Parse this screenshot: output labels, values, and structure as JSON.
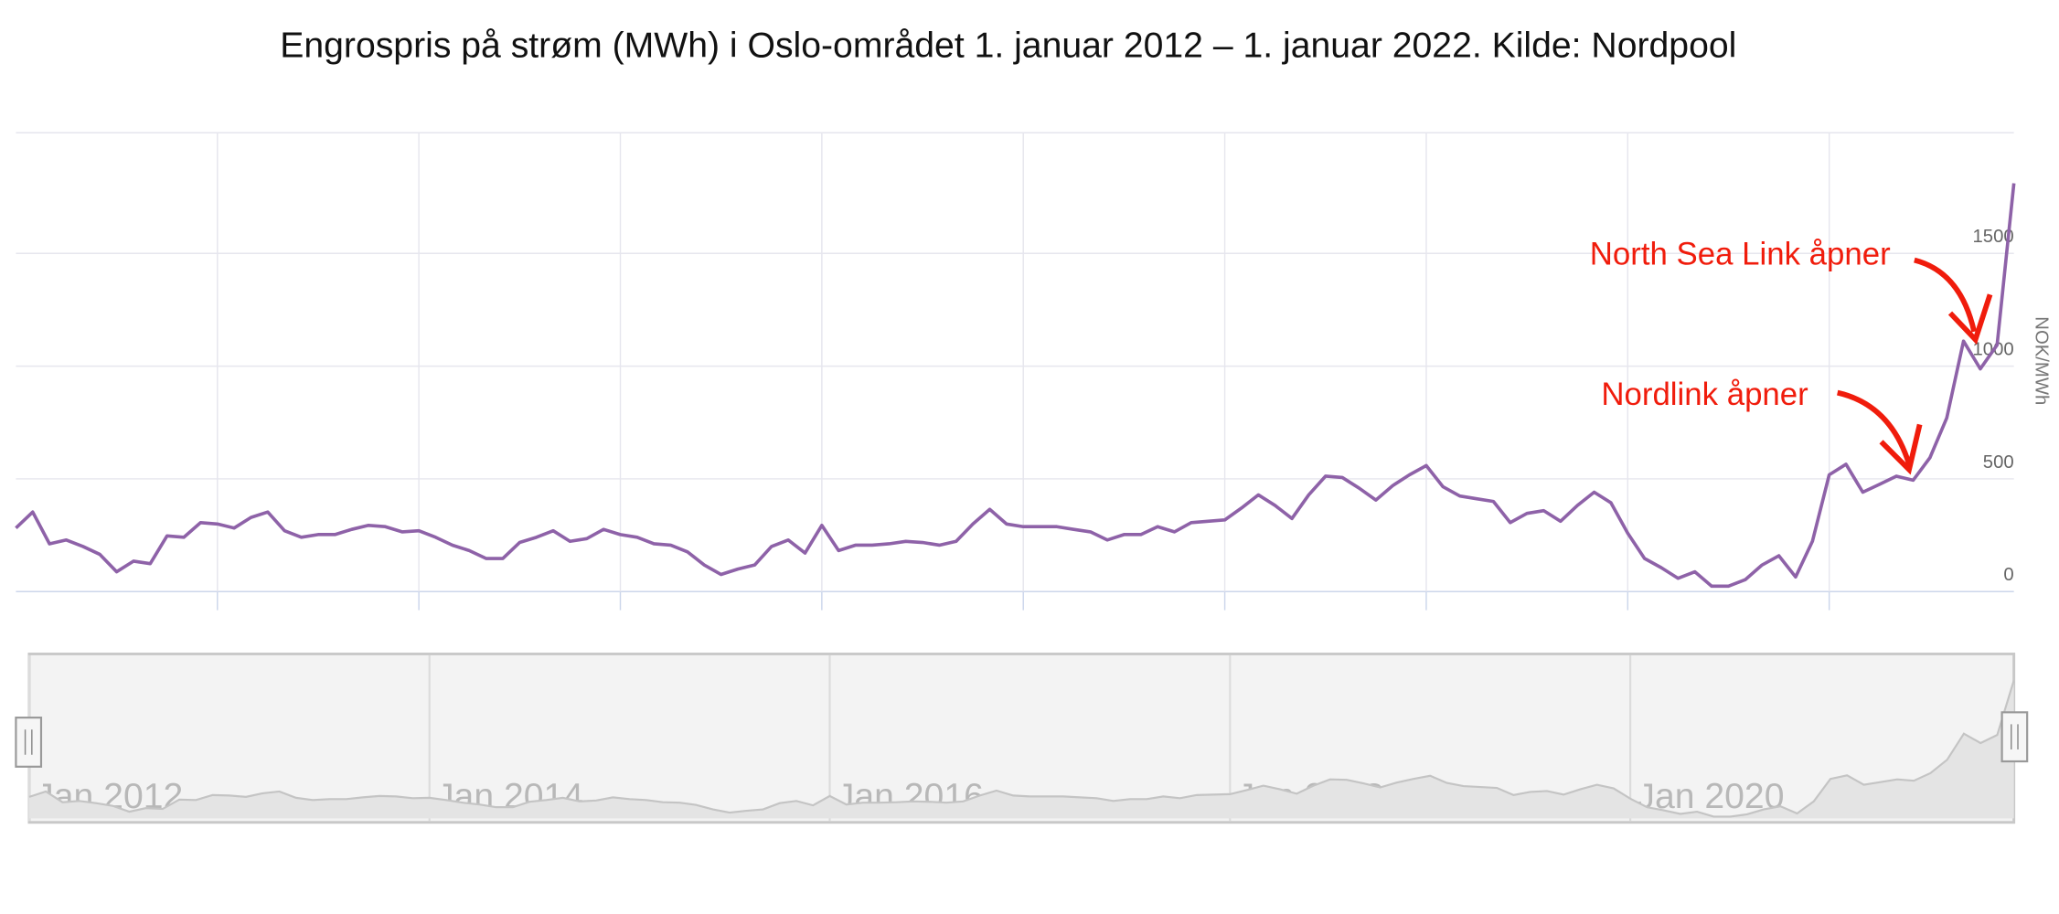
{
  "chart_data": {
    "type": "line",
    "title": "Engrospris på strøm (MWh) i Oslo-området 1. januar 2012 – 1. januar 2022. Kilde: Nordpool",
    "y_label": "NOK/MWh",
    "color": "#8e62a8",
    "grid": true,
    "ylim": [
      0,
      2000
    ],
    "yticks": [
      0,
      500,
      1000,
      1500
    ],
    "xlim": [
      "2012-01",
      "2021-12"
    ],
    "xticks": [
      "2013-01",
      "2014-01",
      "2015-01",
      "2016-01",
      "2017-01",
      "2018-01",
      "2019-01",
      "2020-01",
      "2021-01"
    ],
    "x": [
      "2012-01",
      "2012-02",
      "2012-03",
      "2012-04",
      "2012-05",
      "2012-06",
      "2012-07",
      "2012-08",
      "2012-09",
      "2012-10",
      "2012-11",
      "2012-12",
      "2013-01",
      "2013-02",
      "2013-03",
      "2013-04",
      "2013-05",
      "2013-06",
      "2013-07",
      "2013-08",
      "2013-09",
      "2013-10",
      "2013-11",
      "2013-12",
      "2014-01",
      "2014-02",
      "2014-03",
      "2014-04",
      "2014-05",
      "2014-06",
      "2014-07",
      "2014-08",
      "2014-09",
      "2014-10",
      "2014-11",
      "2014-12",
      "2015-01",
      "2015-02",
      "2015-03",
      "2015-04",
      "2015-05",
      "2015-06",
      "2015-07",
      "2015-08",
      "2015-09",
      "2015-10",
      "2015-11",
      "2015-12",
      "2016-01",
      "2016-02",
      "2016-03",
      "2016-04",
      "2016-05",
      "2016-06",
      "2016-07",
      "2016-08",
      "2016-09",
      "2016-10",
      "2016-11",
      "2016-12",
      "2017-01",
      "2017-02",
      "2017-03",
      "2017-04",
      "2017-05",
      "2017-06",
      "2017-07",
      "2017-08",
      "2017-09",
      "2017-10",
      "2017-11",
      "2017-12",
      "2018-01",
      "2018-02",
      "2018-03",
      "2018-04",
      "2018-05",
      "2018-06",
      "2018-07",
      "2018-08",
      "2018-09",
      "2018-10",
      "2018-11",
      "2018-12",
      "2019-01",
      "2019-02",
      "2019-03",
      "2019-04",
      "2019-05",
      "2019-06",
      "2019-07",
      "2019-08",
      "2019-09",
      "2019-10",
      "2019-11",
      "2019-12",
      "2020-01",
      "2020-02",
      "2020-03",
      "2020-04",
      "2020-05",
      "2020-06",
      "2020-07",
      "2020-08",
      "2020-09",
      "2020-10",
      "2020-11",
      "2020-12",
      "2021-01",
      "2021-02",
      "2021-03",
      "2021-04",
      "2021-05",
      "2021-06",
      "2021-07",
      "2021-08",
      "2021-09",
      "2021-10",
      "2021-11",
      "2021-12"
    ],
    "values": [
      282,
      353,
      212,
      229,
      200,
      165,
      88,
      135,
      124,
      247,
      241,
      306,
      300,
      282,
      329,
      353,
      270,
      241,
      253,
      253,
      276,
      294,
      288,
      265,
      270,
      241,
      206,
      182,
      147,
      147,
      218,
      241,
      270,
      223,
      235,
      276,
      253,
      241,
      212,
      206,
      176,
      118,
      76,
      100,
      118,
      200,
      229,
      171,
      294,
      182,
      206,
      206,
      212,
      223,
      218,
      206,
      223,
      300,
      365,
      300,
      288,
      288,
      288,
      276,
      265,
      229,
      253,
      253,
      288,
      265,
      306,
      312,
      318,
      371,
      429,
      382,
      324,
      429,
      512,
      506,
      459,
      406,
      470,
      518,
      559,
      465,
      424,
      412,
      400,
      306,
      347,
      359,
      312,
      382,
      441,
      394,
      259,
      147,
      106,
      59,
      88,
      24,
      24,
      53,
      118,
      159,
      65,
      223,
      518,
      565,
      441,
      476,
      512,
      494,
      594,
      770,
      1111,
      988,
      1094,
      1811
    ],
    "annotations": [
      {
        "text": "North Sea Link åpner"
      },
      {
        "text": "Nordlink åpner"
      }
    ],
    "navigator": {
      "xticks": [
        {
          "value": "2012-01",
          "label": "Jan 2012"
        },
        {
          "value": "2014-01",
          "label": "Jan 2014"
        },
        {
          "value": "2016-01",
          "label": "Jan 2016"
        },
        {
          "value": "2018-01",
          "label": "Jan 2018"
        },
        {
          "value": "2020-01",
          "label": "Jan 2020"
        }
      ]
    }
  }
}
